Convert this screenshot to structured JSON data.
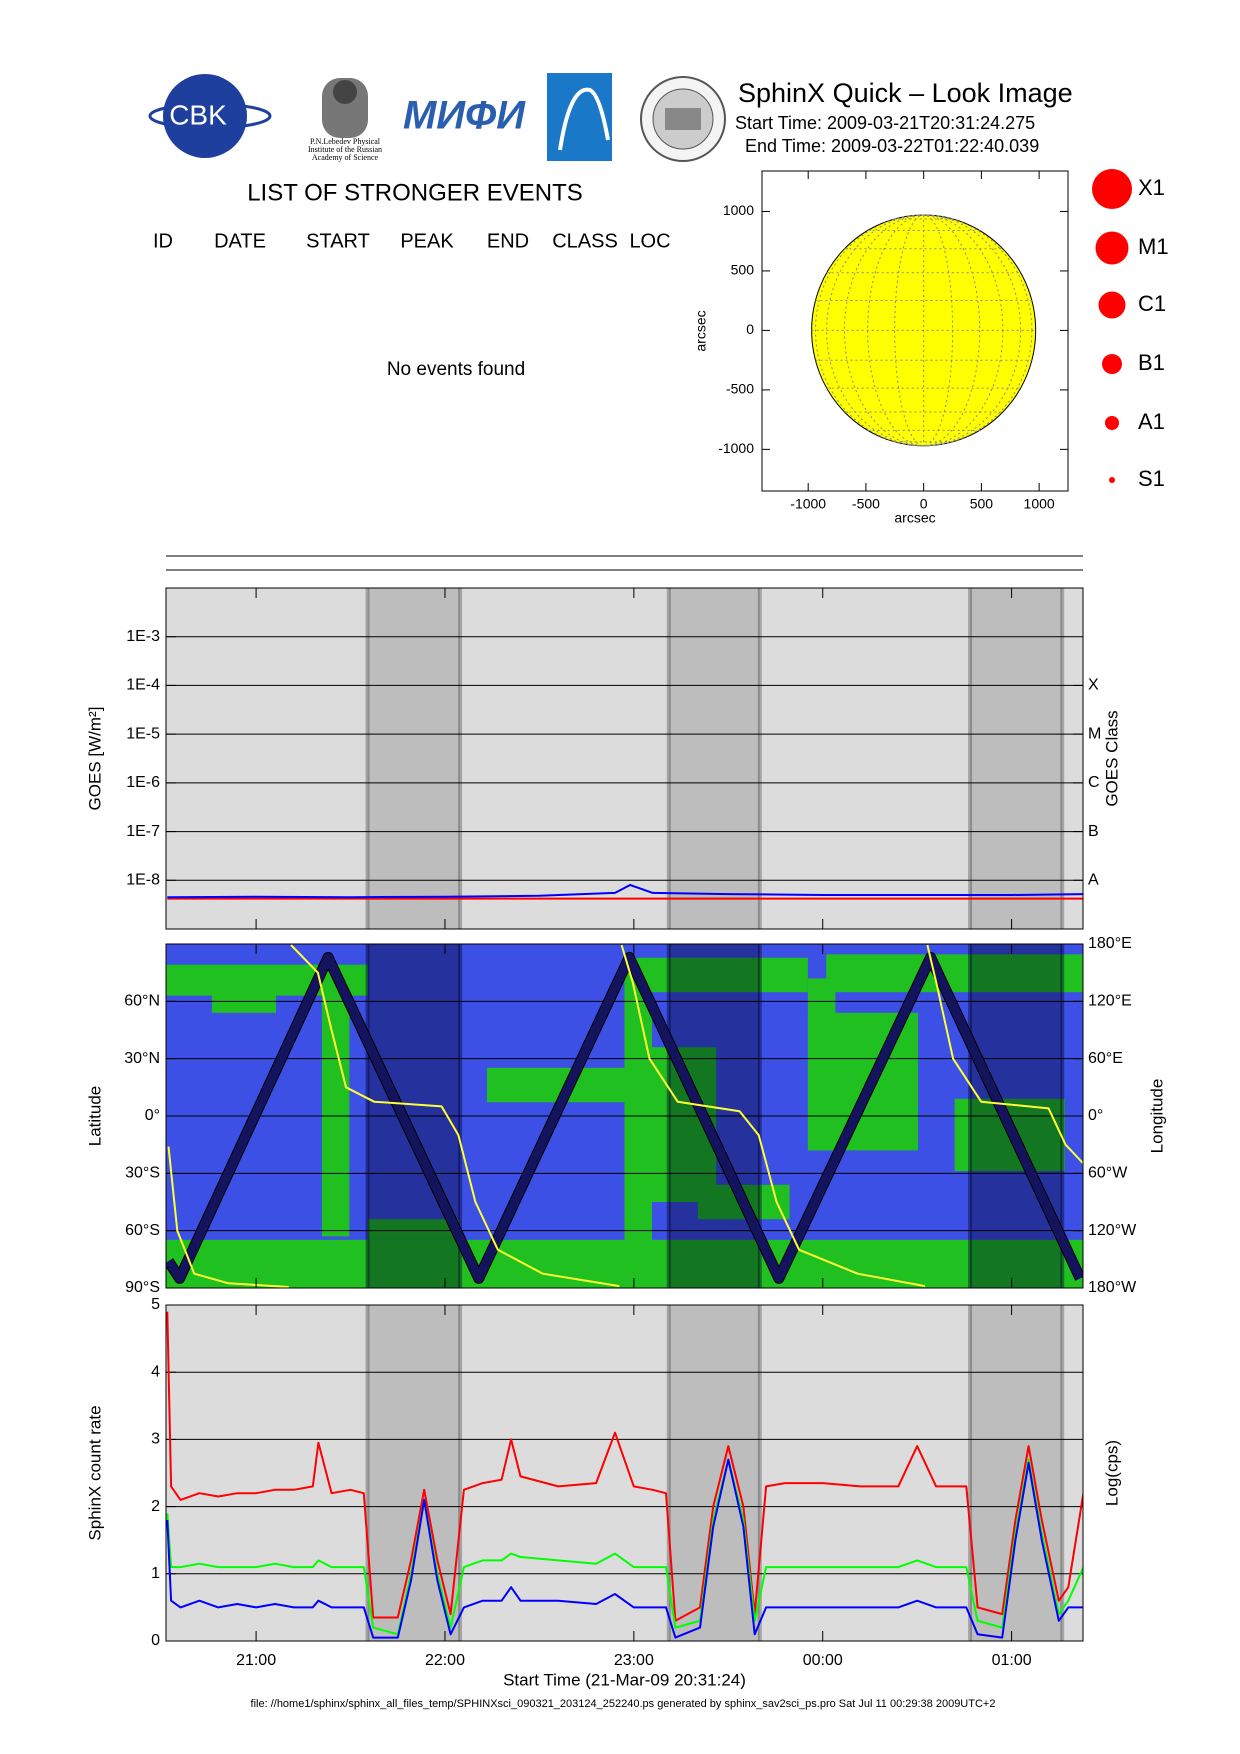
{
  "header": {
    "title": "SphinX Quick – Look Image",
    "start": "Start Time: 2009-03-21T20:31:24.275",
    "end": "End Time: 2009-03-22T01:22:40.039"
  },
  "logos": {
    "cbk": "CBK",
    "mifi": "МИФИ",
    "lebedev": [
      "P.N.Lebedev Physical",
      "Institute of the Russian",
      "Academy of Science"
    ]
  },
  "events": {
    "title": "LIST OF STRONGER EVENTS",
    "columns": [
      "ID",
      "DATE",
      "START",
      "PEAK",
      "END",
      "CLASS",
      "LOC"
    ],
    "message": "No events found"
  },
  "legend_labels": [
    "X1",
    "M1",
    "C1",
    "B1",
    "A1",
    "S1"
  ],
  "footer": "file: //home1/sphinx/sphinx_all_files_temp/SPHINXsci_090321_203124_252240.ps generated by sphinx_sav2sci_ps.pro Sat Jul 11 00:29:38 2009UTC+2",
  "chart_data": [
    {
      "type": "disk",
      "xlabel": "arcsec",
      "ylabel": "arcsec",
      "xlim": [
        -1400,
        1250
      ],
      "ylim": [
        -1350,
        1340
      ],
      "xticks": [
        -1000,
        -500,
        0,
        500,
        1000
      ],
      "yticks": [
        -1000,
        -500,
        0,
        500,
        1000
      ],
      "radius": 970,
      "color": "#ffff00"
    },
    {
      "type": "line",
      "log_y": true,
      "ylabel": "GOES [W/m²]",
      "y2label": "GOES Class",
      "xlim": [
        20.523,
        25.378
      ],
      "ylim": [
        1e-09,
        0.01
      ],
      "yticks": [
        {
          "value": 0.001,
          "label": "1E-3"
        },
        {
          "value": 0.0001,
          "label": "1E-4"
        },
        {
          "value": 1e-05,
          "label": "1E-5"
        },
        {
          "value": 1e-06,
          "label": "1E-6"
        },
        {
          "value": 1e-07,
          "label": "1E-7"
        },
        {
          "value": 1e-08,
          "label": "1E-8"
        }
      ],
      "y2lim": [
        1e-09,
        0.01
      ],
      "y2ticks": [
        {
          "value": 1e-08,
          "label": "A"
        },
        {
          "value": 1e-07,
          "label": "B"
        },
        {
          "value": 1e-06,
          "label": "C"
        },
        {
          "value": 1e-05,
          "label": "M"
        },
        {
          "value": 0.0001,
          "label": "X"
        }
      ],
      "grid": true,
      "x": [
        20.53,
        21.0,
        21.5,
        22.0,
        22.5,
        22.9,
        22.98,
        23.1,
        23.5,
        24.0,
        24.5,
        25.0,
        25.38
      ],
      "series": [
        {
          "color": "#ff0000",
          "values": [
            4.2e-09,
            4.2e-09,
            4.2e-09,
            4.2e-09,
            4.2e-09,
            4.2e-09,
            4.2e-09,
            4.2e-09,
            4.2e-09,
            4.2e-09,
            4.2e-09,
            4.2e-09,
            4.2e-09
          ]
        },
        {
          "color": "#0000ff",
          "values": [
            4.5e-09,
            4.6e-09,
            4.5e-09,
            4.6e-09,
            4.8e-09,
            5.5e-09,
            8e-09,
            5.5e-09,
            5.2e-09,
            5e-09,
            5e-09,
            5e-09,
            5.2e-09
          ]
        }
      ]
    },
    {
      "type": "line",
      "ylabel": "Latitude",
      "y2label": "Longitude",
      "xlim": [
        20.523,
        25.378
      ],
      "ylim": [
        -90,
        90
      ],
      "yticks": [
        {
          "value": -90,
          "label": "90°S"
        },
        {
          "value": -60,
          "label": "60°S"
        },
        {
          "value": -30,
          "label": "30°S"
        },
        {
          "value": 0,
          "label": "0°"
        },
        {
          "value": 30,
          "label": "30°N"
        },
        {
          "value": 60,
          "label": "60°N"
        }
      ],
      "y2lim": [
        -180,
        180
      ],
      "y2ticks": [
        {
          "value": -180,
          "label": "180°W"
        },
        {
          "value": -120,
          "label": "120°W"
        },
        {
          "value": -60,
          "label": "60°W"
        },
        {
          "value": 0,
          "label": "0°"
        },
        {
          "value": 60,
          "label": "60°E"
        },
        {
          "value": 120,
          "label": "120°E"
        },
        {
          "value": 180,
          "label": "180°E"
        }
      ],
      "grid": true,
      "series": [
        {
          "color": "#14145e",
          "x": [
            20.536,
            20.595,
            21.381,
            22.179,
            22.976,
            23.768,
            24.571,
            25.363
          ],
          "values": [
            -76,
            -85,
            83,
            -85,
            83,
            -85,
            83,
            -85
          ]
        },
        {
          "color": "#ffff33",
          "axis": "y2",
          "x": [
            20.536,
            20.583,
            20.673,
            20.851,
            21.173,
            21.179,
            21.185,
            21.327,
            21.399,
            21.476,
            21.625,
            21.982,
            22.071,
            22.161,
            22.28,
            22.518,
            22.923,
            22.929,
            22.935,
            22.994,
            23.083,
            23.232,
            23.56,
            23.661,
            23.756,
            23.875,
            24.185,
            24.542,
            24.548,
            24.554,
            24.601,
            24.69,
            24.839,
            25.196,
            25.286,
            25.381
          ],
          "values": [
            -32,
            -120,
            -165,
            -175,
            -179,
            null,
            179,
            150,
            90,
            30,
            15,
            10,
            -20,
            -90,
            -140,
            -165,
            -178,
            null,
            179,
            140,
            60,
            15,
            5,
            -20,
            -90,
            -140,
            -165,
            -178,
            null,
            179,
            140,
            60,
            15,
            8,
            -30,
            -50
          ]
        }
      ]
    },
    {
      "type": "line",
      "ylabel": "SphinX count rate",
      "y2label": "Log(cps)",
      "xlabel": "Start Time (21-Mar-09 20:31:24)",
      "xlim": [
        20.523,
        25.378
      ],
      "ylim": [
        0,
        5
      ],
      "yticks": [
        0,
        1,
        2,
        3,
        4,
        5
      ],
      "xticks": [
        {
          "value": 21,
          "label": "21:00"
        },
        {
          "value": 22,
          "label": "22:00"
        },
        {
          "value": 23,
          "label": "23:00"
        },
        {
          "value": 24,
          "label": "00:00"
        },
        {
          "value": 25,
          "label": "01:00"
        }
      ],
      "grid": true,
      "shaded_intervals": [
        [
          21.59,
          22.08
        ],
        [
          23.185,
          23.667
        ],
        [
          24.78,
          25.268
        ]
      ],
      "x": [
        20.53,
        20.55,
        20.6,
        20.7,
        20.8,
        20.9,
        21.0,
        21.1,
        21.2,
        21.3,
        21.33,
        21.4,
        21.5,
        21.57,
        21.62,
        21.75,
        21.82,
        21.89,
        21.96,
        22.03,
        22.1,
        22.2,
        22.3,
        22.35,
        22.4,
        22.6,
        22.8,
        22.9,
        23.0,
        23.1,
        23.17,
        23.22,
        23.35,
        23.42,
        23.5,
        23.58,
        23.64,
        23.7,
        23.8,
        24.0,
        24.2,
        24.4,
        24.5,
        24.6,
        24.76,
        24.82,
        24.95,
        25.02,
        25.09,
        25.16,
        25.25,
        25.3,
        25.38
      ],
      "series": [
        {
          "color": "#ff0000",
          "values": [
            4.9,
            2.3,
            2.1,
            2.2,
            2.15,
            2.2,
            2.2,
            2.25,
            2.25,
            2.3,
            2.95,
            2.2,
            2.25,
            2.2,
            0.35,
            0.35,
            1.2,
            2.25,
            1.2,
            0.4,
            2.25,
            2.35,
            2.4,
            3.0,
            2.45,
            2.3,
            2.35,
            3.1,
            2.3,
            2.25,
            2.2,
            0.3,
            0.5,
            2.0,
            2.9,
            2.0,
            0.4,
            2.3,
            2.35,
            2.35,
            2.3,
            2.3,
            2.9,
            2.3,
            2.3,
            0.5,
            0.4,
            1.8,
            2.9,
            1.8,
            0.6,
            0.8,
            2.2
          ]
        },
        {
          "color": "#00ff00",
          "values": [
            1.9,
            1.1,
            1.1,
            1.15,
            1.1,
            1.1,
            1.1,
            1.15,
            1.1,
            1.1,
            1.2,
            1.1,
            1.1,
            1.1,
            0.2,
            0.1,
            1.0,
            2.1,
            1.0,
            0.2,
            1.1,
            1.2,
            1.2,
            1.3,
            1.25,
            1.2,
            1.15,
            1.3,
            1.1,
            1.1,
            1.1,
            0.2,
            0.3,
            1.8,
            2.7,
            1.8,
            0.3,
            1.1,
            1.1,
            1.1,
            1.1,
            1.1,
            1.2,
            1.1,
            1.1,
            0.3,
            0.2,
            1.6,
            2.7,
            1.6,
            0.4,
            0.6,
            1.1
          ]
        },
        {
          "color": "#0000ff",
          "values": [
            1.8,
            0.6,
            0.5,
            0.6,
            0.5,
            0.55,
            0.5,
            0.55,
            0.5,
            0.5,
            0.6,
            0.5,
            0.5,
            0.5,
            0.05,
            0.05,
            0.9,
            2.1,
            0.9,
            0.1,
            0.5,
            0.6,
            0.6,
            0.8,
            0.6,
            0.6,
            0.55,
            0.7,
            0.5,
            0.5,
            0.5,
            0.05,
            0.2,
            1.7,
            2.7,
            1.7,
            0.1,
            0.5,
            0.5,
            0.5,
            0.5,
            0.5,
            0.6,
            0.5,
            0.5,
            0.1,
            0.05,
            1.5,
            2.65,
            1.5,
            0.3,
            0.5,
            0.5
          ]
        }
      ]
    }
  ]
}
